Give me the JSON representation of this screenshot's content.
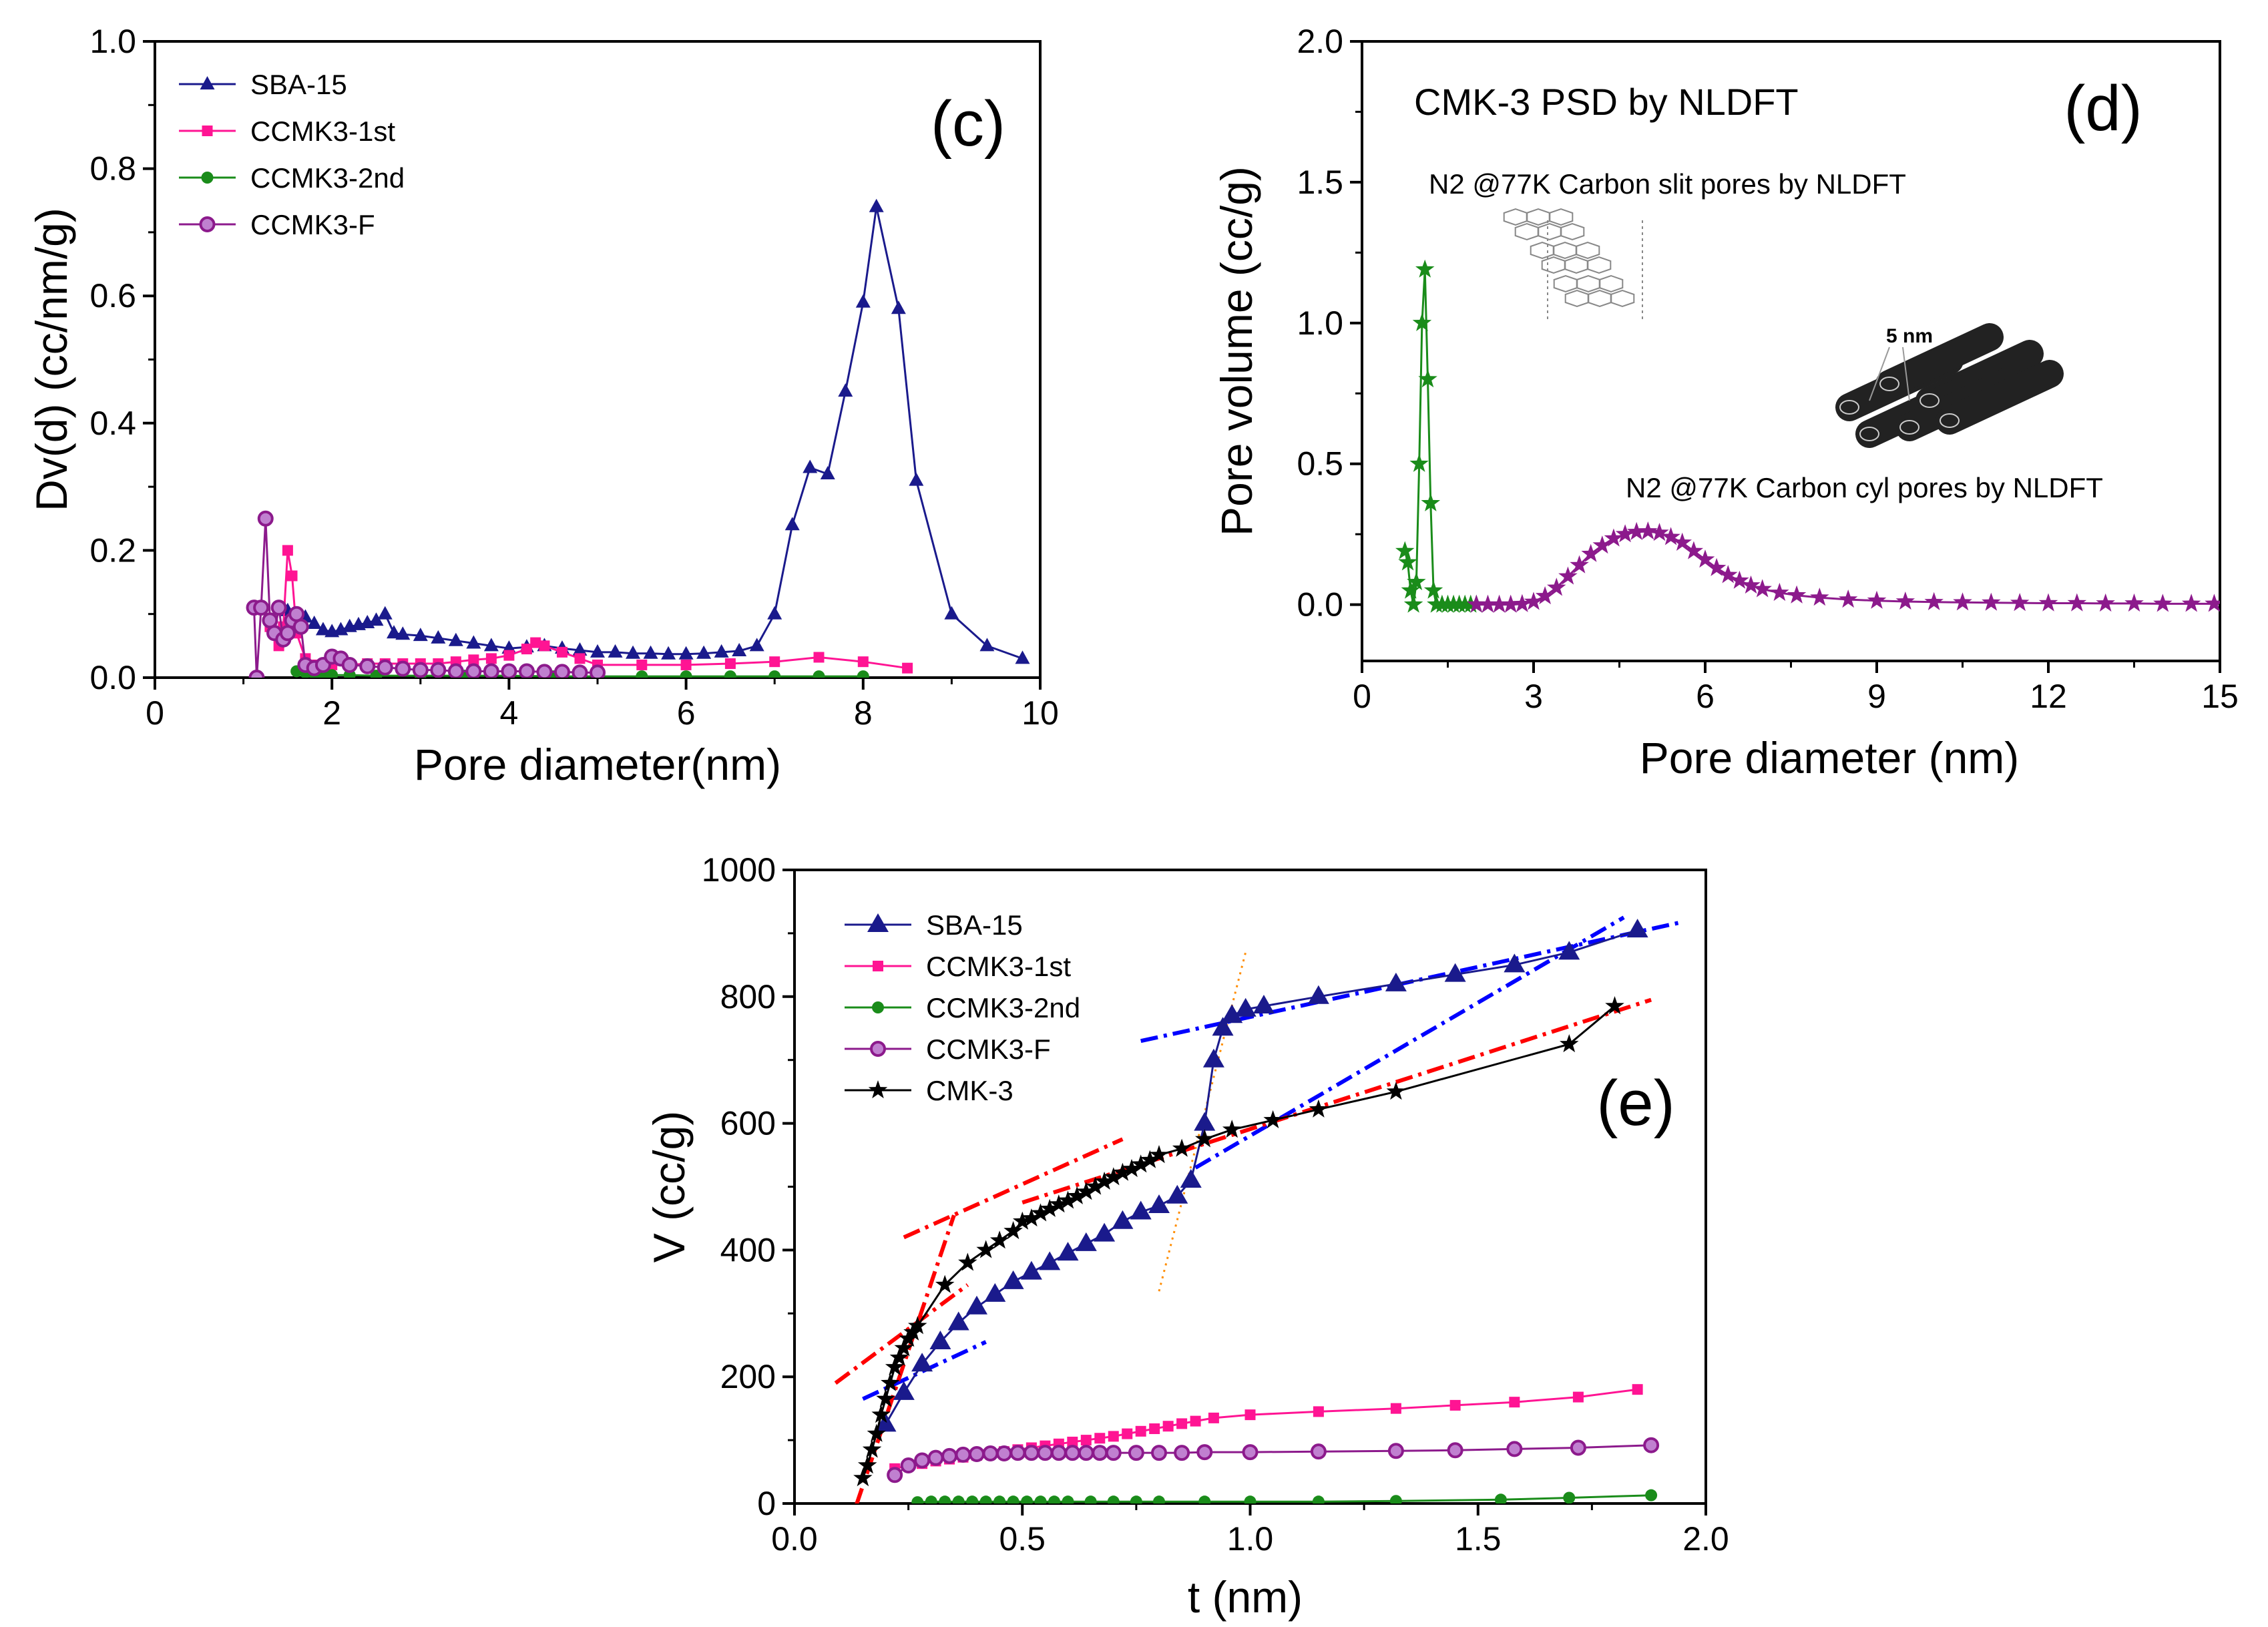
{
  "chart_data": [
    {
      "id": "c",
      "type": "line",
      "panel_label": "(c)",
      "xlabel": "Pore diameter(nm)",
      "ylabel": "Dv(d) (cc/nm/g)",
      "xlim": [
        0,
        10
      ],
      "ylim": [
        0,
        1.0
      ],
      "xticks": [
        "0",
        "2",
        "4",
        "6",
        "8",
        "10"
      ],
      "yticks": [
        "0.0",
        "0.2",
        "0.4",
        "0.6",
        "0.8",
        "1.0"
      ],
      "legend_position": "top-left",
      "series": [
        {
          "name": "SBA-15",
          "color": "#1a1a8c",
          "marker": "triangle",
          "x": [
            1.5,
            1.6,
            1.7,
            1.8,
            1.9,
            2.0,
            2.1,
            2.2,
            2.3,
            2.4,
            2.5,
            2.6,
            2.7,
            2.8,
            3.0,
            3.2,
            3.4,
            3.6,
            3.8,
            4.0,
            4.2,
            4.4,
            4.6,
            4.8,
            5.0,
            5.2,
            5.4,
            5.6,
            5.8,
            6.0,
            6.2,
            6.4,
            6.6,
            6.8,
            7.0,
            7.2,
            7.4,
            7.6,
            7.8,
            8.0,
            8.15,
            8.4,
            8.6,
            9.0,
            9.4,
            9.8
          ],
          "y": [
            0.105,
            0.1,
            0.095,
            0.085,
            0.075,
            0.072,
            0.075,
            0.08,
            0.083,
            0.086,
            0.09,
            0.1,
            0.07,
            0.068,
            0.066,
            0.062,
            0.058,
            0.054,
            0.05,
            0.046,
            0.048,
            0.05,
            0.046,
            0.043,
            0.04,
            0.04,
            0.038,
            0.038,
            0.037,
            0.037,
            0.038,
            0.04,
            0.042,
            0.05,
            0.1,
            0.24,
            0.33,
            0.32,
            0.45,
            0.59,
            0.74,
            0.58,
            0.31,
            0.1,
            0.05,
            0.03
          ]
        },
        {
          "name": "CCMK3-1st",
          "color": "#ff1493",
          "marker": "square",
          "x": [
            1.3,
            1.4,
            1.45,
            1.5,
            1.55,
            1.6,
            1.7,
            1.8,
            2.0,
            2.2,
            2.4,
            2.6,
            2.8,
            3.0,
            3.2,
            3.4,
            3.6,
            3.8,
            4.0,
            4.2,
            4.3,
            4.4,
            4.6,
            4.8,
            5.0,
            5.5,
            6.0,
            6.5,
            7.0,
            7.5,
            8.0,
            8.5
          ],
          "y": [
            0.08,
            0.05,
            0.08,
            0.2,
            0.16,
            0.07,
            0.03,
            0.02,
            0.02,
            0.02,
            0.022,
            0.022,
            0.022,
            0.022,
            0.022,
            0.025,
            0.028,
            0.03,
            0.035,
            0.045,
            0.055,
            0.05,
            0.04,
            0.03,
            0.02,
            0.02,
            0.02,
            0.022,
            0.025,
            0.032,
            0.025,
            0.015
          ]
        },
        {
          "name": "CCMK3-2nd",
          "color": "#1a8c1a",
          "marker": "circle",
          "x": [
            1.6,
            1.7,
            1.8,
            1.9,
            2.0,
            2.2,
            2.5,
            3.0,
            3.5,
            4.0,
            4.5,
            5.0,
            5.5,
            6.0,
            6.5,
            7.0,
            7.5,
            8.0
          ],
          "y": [
            0.01,
            0.008,
            0.006,
            0.005,
            0.004,
            0.004,
            0.003,
            0.003,
            0.003,
            0.003,
            0.002,
            0.002,
            0.002,
            0.002,
            0.002,
            0.002,
            0.002,
            0.002
          ]
        },
        {
          "name": "CCMK3-F",
          "color": "#8c1a8c",
          "marker": "ball",
          "x": [
            1.12,
            1.15,
            1.2,
            1.25,
            1.3,
            1.35,
            1.4,
            1.45,
            1.5,
            1.55,
            1.6,
            1.65,
            1.7,
            1.8,
            1.9,
            2.0,
            2.1,
            2.2,
            2.4,
            2.6,
            2.8,
            3.0,
            3.2,
            3.4,
            3.6,
            3.8,
            4.0,
            4.2,
            4.4,
            4.6,
            4.8,
            5.0
          ],
          "y": [
            0.11,
            0.0,
            0.11,
            0.25,
            0.09,
            0.07,
            0.11,
            0.06,
            0.07,
            0.09,
            0.1,
            0.08,
            0.02,
            0.015,
            0.02,
            0.033,
            0.03,
            0.02,
            0.018,
            0.016,
            0.014,
            0.012,
            0.012,
            0.01,
            0.01,
            0.01,
            0.01,
            0.01,
            0.009,
            0.009,
            0.008,
            0.008
          ]
        }
      ]
    },
    {
      "id": "d",
      "type": "line",
      "panel_label": "(d)",
      "title": "CMK-3 PSD by NLDFT",
      "xlabel": "Pore diameter (nm)",
      "ylabel": "Pore volume (cc/g)",
      "xlim": [
        0,
        15
      ],
      "ylim": [
        -0.2,
        2.0
      ],
      "xticks": [
        "0",
        "3",
        "6",
        "9",
        "12",
        "15"
      ],
      "yticks": [
        "0.0",
        "0.5",
        "1.0",
        "1.5",
        "2.0"
      ],
      "annotations": [
        "N2 @77K Carbon slit pores by NLDFT",
        "N2 @77K Carbon cyl pores by NLDFT",
        "5 nm"
      ],
      "series": [
        {
          "name": "N2 @77K Carbon slit pores by NLDFT",
          "color": "#1a8c1a",
          "marker": "star",
          "x": [
            0.75,
            0.8,
            0.85,
            0.9,
            0.95,
            1.0,
            1.05,
            1.1,
            1.15,
            1.2,
            1.25,
            1.3,
            1.4,
            1.5,
            1.6,
            1.7,
            1.8,
            1.9,
            2.0
          ],
          "y": [
            0.19,
            0.15,
            0.05,
            0.0,
            0.08,
            0.5,
            1.0,
            1.19,
            0.8,
            0.36,
            0.05,
            0.0,
            0.0,
            0.0,
            0.0,
            0.0,
            0.0,
            0.0,
            0.0
          ]
        },
        {
          "name": "N2 @77K Carbon cyl pores by NLDFT",
          "color": "#8c1a8c",
          "marker": "star",
          "x": [
            2.0,
            2.2,
            2.4,
            2.6,
            2.8,
            3.0,
            3.2,
            3.4,
            3.6,
            3.8,
            4.0,
            4.2,
            4.4,
            4.6,
            4.8,
            5.0,
            5.2,
            5.4,
            5.6,
            5.8,
            6.0,
            6.2,
            6.4,
            6.6,
            6.8,
            7.0,
            7.3,
            7.6,
            8.0,
            8.5,
            9.0,
            9.5,
            10.0,
            10.5,
            11.0,
            11.5,
            12.0,
            12.5,
            13.0,
            13.5,
            14.0,
            14.5,
            14.9
          ],
          "y": [
            0.0,
            0.0,
            0.0,
            0.0,
            0.002,
            0.01,
            0.03,
            0.06,
            0.1,
            0.14,
            0.18,
            0.21,
            0.235,
            0.25,
            0.258,
            0.26,
            0.255,
            0.24,
            0.22,
            0.19,
            0.16,
            0.13,
            0.105,
            0.085,
            0.068,
            0.055,
            0.042,
            0.033,
            0.025,
            0.018,
            0.014,
            0.011,
            0.009,
            0.008,
            0.007,
            0.006,
            0.005,
            0.005,
            0.004,
            0.004,
            0.003,
            0.003,
            0.003
          ]
        }
      ]
    },
    {
      "id": "e",
      "type": "line",
      "panel_label": "(e)",
      "xlabel": "t (nm)",
      "ylabel": "V (cc/g)",
      "xlim": [
        0.0,
        2.0
      ],
      "ylim": [
        0,
        1000
      ],
      "xticks": [
        "0.0",
        "0.5",
        "1.0",
        "1.5",
        "2.0"
      ],
      "yticks": [
        "0",
        "200",
        "400",
        "600",
        "800",
        "1000"
      ],
      "legend_position": "top-left",
      "series": [
        {
          "name": "SBA-15",
          "color": "#1a1a8c",
          "marker": "triangle-big",
          "x": [
            0.2,
            0.24,
            0.28,
            0.32,
            0.36,
            0.4,
            0.44,
            0.48,
            0.52,
            0.56,
            0.6,
            0.64,
            0.68,
            0.72,
            0.76,
            0.8,
            0.84,
            0.87,
            0.9,
            0.92,
            0.94,
            0.96,
            0.99,
            1.03,
            1.15,
            1.32,
            1.45,
            1.58,
            1.7,
            1.85
          ],
          "y": [
            125,
            175,
            220,
            255,
            285,
            310,
            330,
            350,
            365,
            380,
            395,
            410,
            425,
            445,
            460,
            470,
            485,
            510,
            600,
            700,
            750,
            770,
            780,
            785,
            800,
            820,
            835,
            850,
            870,
            905
          ]
        },
        {
          "name": "CCMK3-1st",
          "color": "#ff1493",
          "marker": "square",
          "x": [
            0.22,
            0.25,
            0.28,
            0.31,
            0.34,
            0.37,
            0.4,
            0.43,
            0.46,
            0.49,
            0.52,
            0.55,
            0.58,
            0.61,
            0.64,
            0.67,
            0.7,
            0.73,
            0.76,
            0.79,
            0.82,
            0.85,
            0.88,
            0.92,
            1.0,
            1.15,
            1.32,
            1.45,
            1.58,
            1.72,
            1.85
          ],
          "y": [
            55,
            60,
            63,
            67,
            70,
            73,
            76,
            79,
            82,
            85,
            88,
            91,
            94,
            97,
            100,
            103,
            106,
            110,
            114,
            118,
            122,
            126,
            130,
            135,
            140,
            145,
            150,
            155,
            160,
            168,
            180
          ]
        },
        {
          "name": "CCMK3-2nd",
          "color": "#1a8c1a",
          "marker": "circle",
          "x": [
            0.27,
            0.3,
            0.33,
            0.36,
            0.39,
            0.42,
            0.45,
            0.48,
            0.51,
            0.54,
            0.57,
            0.6,
            0.65,
            0.7,
            0.75,
            0.8,
            0.9,
            1.0,
            1.15,
            1.32,
            1.55,
            1.7,
            1.88
          ],
          "y": [
            2,
            3,
            3,
            3,
            3,
            3,
            3,
            3,
            3,
            3,
            3,
            3,
            3,
            3,
            3,
            3,
            3,
            3,
            3,
            4,
            6,
            9,
            13
          ]
        },
        {
          "name": "CCMK3-F",
          "color": "#8c1a8c",
          "marker": "ball",
          "x": [
            0.22,
            0.25,
            0.28,
            0.31,
            0.34,
            0.37,
            0.4,
            0.43,
            0.46,
            0.49,
            0.52,
            0.55,
            0.58,
            0.61,
            0.64,
            0.67,
            0.7,
            0.75,
            0.8,
            0.85,
            0.9,
            1.0,
            1.15,
            1.32,
            1.45,
            1.58,
            1.72,
            1.88
          ],
          "y": [
            45,
            60,
            68,
            72,
            75,
            77,
            78,
            79,
            79,
            80,
            80,
            80,
            80,
            80,
            80,
            80,
            80,
            80,
            80,
            80,
            81,
            81,
            82,
            83,
            84,
            86,
            88,
            92
          ]
        },
        {
          "name": "CMK-3",
          "color": "#000000",
          "marker": "star",
          "x": [
            0.15,
            0.16,
            0.17,
            0.18,
            0.19,
            0.2,
            0.21,
            0.22,
            0.23,
            0.24,
            0.25,
            0.26,
            0.27,
            0.33,
            0.38,
            0.42,
            0.45,
            0.48,
            0.5,
            0.52,
            0.54,
            0.56,
            0.58,
            0.6,
            0.62,
            0.64,
            0.66,
            0.68,
            0.7,
            0.72,
            0.74,
            0.76,
            0.78,
            0.8,
            0.85,
            0.9,
            0.96,
            1.05,
            1.15,
            1.32,
            1.7,
            1.8
          ],
          "y": [
            40,
            60,
            85,
            110,
            140,
            165,
            190,
            215,
            230,
            245,
            260,
            270,
            280,
            345,
            380,
            400,
            415,
            430,
            445,
            450,
            458,
            465,
            472,
            478,
            485,
            492,
            500,
            508,
            515,
            522,
            528,
            535,
            542,
            550,
            560,
            575,
            590,
            605,
            622,
            650,
            725,
            785
          ]
        }
      ],
      "guide_lines": [
        {
          "color": "#0000ff",
          "style": "dash-dot",
          "x": [
            0.76,
            1.95
          ],
          "y": [
            730,
            918
          ]
        },
        {
          "color": "#0000ff",
          "style": "dash-dot",
          "x": [
            0.15,
            0.42
          ],
          "y": [
            165,
            255
          ]
        },
        {
          "color": "#0000ff",
          "style": "dash-dot",
          "x": [
            0.88,
            1.82
          ],
          "y": [
            530,
            925
          ]
        },
        {
          "color": "#ff0000",
          "style": "dash-dot",
          "x": [
            0.09,
            0.35
          ],
          "y": [
            -100,
            455
          ]
        },
        {
          "color": "#ff0000",
          "style": "dash-dot",
          "x": [
            0.09,
            0.38
          ],
          "y": [
            190,
            345
          ]
        },
        {
          "color": "#ff0000",
          "style": "dash-dot",
          "x": [
            0.24,
            0.72
          ],
          "y": [
            420,
            575
          ]
        },
        {
          "color": "#ff0000",
          "style": "dash-dot",
          "x": [
            0.5,
            1.88
          ],
          "y": [
            475,
            795
          ]
        },
        {
          "color": "#ff8c00",
          "style": "dot",
          "x": [
            0.8,
            0.99
          ],
          "y": [
            335,
            870
          ]
        }
      ]
    }
  ]
}
